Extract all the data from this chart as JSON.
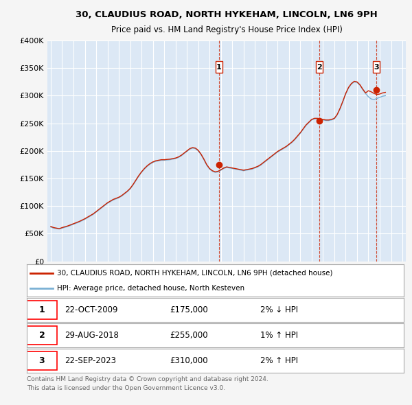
{
  "title": "30, CLAUDIUS ROAD, NORTH HYKEHAM, LINCOLN, LN6 9PH",
  "subtitle": "Price paid vs. HM Land Registry's House Price Index (HPI)",
  "background_color": "#f5f5f5",
  "plot_bg_color": "#dce8f5",
  "grid_color": "#ffffff",
  "hpi_line_color": "#7ab0d4",
  "price_line_color": "#cc2200",
  "ylim": [
    0,
    400000
  ],
  "yticks": [
    0,
    50000,
    100000,
    150000,
    200000,
    250000,
    300000,
    350000,
    400000
  ],
  "ytick_labels": [
    "£0",
    "£50K",
    "£100K",
    "£150K",
    "£200K",
    "£250K",
    "£300K",
    "£350K",
    "£400K"
  ],
  "xlim_start": 1994.7,
  "xlim_end": 2026.3,
  "xticks": [
    1995,
    1996,
    1997,
    1998,
    1999,
    2000,
    2001,
    2002,
    2003,
    2004,
    2005,
    2006,
    2007,
    2008,
    2009,
    2010,
    2011,
    2012,
    2013,
    2014,
    2015,
    2016,
    2017,
    2018,
    2019,
    2020,
    2021,
    2022,
    2023,
    2024,
    2025,
    2026
  ],
  "sales": [
    {
      "year": 2009.81,
      "price": 175000,
      "label": "1",
      "note": "22-OCT-2009",
      "amount": "£175,000",
      "hpi_pct": "2% ↓ HPI"
    },
    {
      "year": 2018.66,
      "price": 255000,
      "label": "2",
      "note": "29-AUG-2018",
      "amount": "£255,000",
      "hpi_pct": "1% ↑ HPI"
    },
    {
      "year": 2023.72,
      "price": 310000,
      "label": "3",
      "note": "22-SEP-2023",
      "amount": "£310,000",
      "hpi_pct": "2% ↑ HPI"
    }
  ],
  "legend_label_red": "30, CLAUDIUS ROAD, NORTH HYKEHAM, LINCOLN, LN6 9PH (detached house)",
  "legend_label_blue": "HPI: Average price, detached house, North Kesteven",
  "footer_line1": "Contains HM Land Registry data © Crown copyright and database right 2024.",
  "footer_line2": "This data is licensed under the Open Government Licence v3.0.",
  "hpi_years": [
    1995.0,
    1995.25,
    1995.5,
    1995.75,
    1996.0,
    1996.25,
    1996.5,
    1996.75,
    1997.0,
    1997.25,
    1997.5,
    1997.75,
    1998.0,
    1998.25,
    1998.5,
    1998.75,
    1999.0,
    1999.25,
    1999.5,
    1999.75,
    2000.0,
    2000.25,
    2000.5,
    2000.75,
    2001.0,
    2001.25,
    2001.5,
    2001.75,
    2002.0,
    2002.25,
    2002.5,
    2002.75,
    2003.0,
    2003.25,
    2003.5,
    2003.75,
    2004.0,
    2004.25,
    2004.5,
    2004.75,
    2005.0,
    2005.25,
    2005.5,
    2005.75,
    2006.0,
    2006.25,
    2006.5,
    2006.75,
    2007.0,
    2007.25,
    2007.5,
    2007.75,
    2008.0,
    2008.25,
    2008.5,
    2008.75,
    2009.0,
    2009.25,
    2009.5,
    2009.75,
    2010.0,
    2010.25,
    2010.5,
    2010.75,
    2011.0,
    2011.25,
    2011.5,
    2011.75,
    2012.0,
    2012.25,
    2012.5,
    2012.75,
    2013.0,
    2013.25,
    2013.5,
    2013.75,
    2014.0,
    2014.25,
    2014.5,
    2014.75,
    2015.0,
    2015.25,
    2015.5,
    2015.75,
    2016.0,
    2016.25,
    2016.5,
    2016.75,
    2017.0,
    2017.25,
    2017.5,
    2017.75,
    2018.0,
    2018.25,
    2018.5,
    2018.75,
    2019.0,
    2019.25,
    2019.5,
    2019.75,
    2020.0,
    2020.25,
    2020.5,
    2020.75,
    2021.0,
    2021.25,
    2021.5,
    2021.75,
    2022.0,
    2022.25,
    2022.5,
    2022.75,
    2023.0,
    2023.25,
    2023.5,
    2023.75,
    2024.0,
    2024.25,
    2024.5
  ],
  "hpi_values": [
    62000,
    60000,
    59000,
    58500,
    60000,
    61500,
    63000,
    65000,
    67000,
    69000,
    71000,
    73500,
    76000,
    79000,
    82000,
    85000,
    89000,
    93000,
    97000,
    101000,
    105000,
    108000,
    111000,
    113000,
    115000,
    118000,
    122000,
    126000,
    131000,
    138000,
    146000,
    154000,
    161000,
    167000,
    172000,
    176000,
    179000,
    181000,
    182000,
    183000,
    183000,
    183500,
    184000,
    185000,
    186000,
    188000,
    191000,
    195000,
    199000,
    203000,
    205000,
    204000,
    200000,
    193000,
    184000,
    174000,
    167000,
    163000,
    161000,
    162000,
    165000,
    168000,
    170000,
    169000,
    168000,
    167000,
    166000,
    165000,
    164000,
    165000,
    166000,
    167000,
    169000,
    171000,
    174000,
    178000,
    182000,
    186000,
    190000,
    194000,
    198000,
    201000,
    204000,
    207000,
    211000,
    215000,
    220000,
    226000,
    232000,
    239000,
    246000,
    251000,
    256000,
    258000,
    258000,
    257000,
    256000,
    255000,
    255000,
    256000,
    258000,
    265000,
    276000,
    289000,
    303000,
    314000,
    321000,
    325000,
    324000,
    319000,
    311000,
    304000,
    298000,
    294000,
    293000,
    295000,
    297000,
    299000,
    300000
  ],
  "price_years": [
    1995.0,
    1995.25,
    1995.5,
    1995.75,
    1996.0,
    1996.25,
    1996.5,
    1996.75,
    1997.0,
    1997.25,
    1997.5,
    1997.75,
    1998.0,
    1998.25,
    1998.5,
    1998.75,
    1999.0,
    1999.25,
    1999.5,
    1999.75,
    2000.0,
    2000.25,
    2000.5,
    2000.75,
    2001.0,
    2001.25,
    2001.5,
    2001.75,
    2002.0,
    2002.25,
    2002.5,
    2002.75,
    2003.0,
    2003.25,
    2003.5,
    2003.75,
    2004.0,
    2004.25,
    2004.5,
    2004.75,
    2005.0,
    2005.25,
    2005.5,
    2005.75,
    2006.0,
    2006.25,
    2006.5,
    2006.75,
    2007.0,
    2007.25,
    2007.5,
    2007.75,
    2008.0,
    2008.25,
    2008.5,
    2008.75,
    2009.0,
    2009.25,
    2009.5,
    2009.75,
    2010.0,
    2010.25,
    2010.5,
    2010.75,
    2011.0,
    2011.25,
    2011.5,
    2011.75,
    2012.0,
    2012.25,
    2012.5,
    2012.75,
    2013.0,
    2013.25,
    2013.5,
    2013.75,
    2014.0,
    2014.25,
    2014.5,
    2014.75,
    2015.0,
    2015.25,
    2015.5,
    2015.75,
    2016.0,
    2016.25,
    2016.5,
    2016.75,
    2017.0,
    2017.25,
    2017.5,
    2017.75,
    2018.0,
    2018.25,
    2018.5,
    2018.75,
    2019.0,
    2019.25,
    2019.5,
    2019.75,
    2020.0,
    2020.25,
    2020.5,
    2020.75,
    2021.0,
    2021.25,
    2021.5,
    2021.75,
    2022.0,
    2022.25,
    2022.5,
    2022.75,
    2023.0,
    2023.25,
    2023.5,
    2023.75,
    2024.0,
    2024.25,
    2024.5
  ],
  "price_values": [
    63000,
    61000,
    60000,
    59000,
    61000,
    62500,
    64000,
    66000,
    68000,
    70000,
    72000,
    74500,
    77000,
    80000,
    83000,
    86000,
    90000,
    94000,
    98000,
    102000,
    106000,
    109000,
    112000,
    114000,
    116000,
    119000,
    123000,
    127000,
    132000,
    139000,
    147000,
    155000,
    162000,
    168000,
    173000,
    177000,
    180000,
    182000,
    183000,
    184000,
    184000,
    184500,
    185000,
    186000,
    187000,
    189000,
    192000,
    196000,
    200000,
    204000,
    206000,
    205000,
    201000,
    194000,
    185000,
    175000,
    168000,
    164000,
    162000,
    163000,
    166000,
    169000,
    171000,
    170000,
    169000,
    168000,
    167000,
    166000,
    165000,
    166000,
    167000,
    168000,
    170000,
    172000,
    175000,
    179000,
    183000,
    187000,
    191000,
    195000,
    199000,
    202000,
    205000,
    208000,
    212000,
    216000,
    221000,
    227000,
    233000,
    240000,
    247000,
    252000,
    257000,
    259000,
    259000,
    258000,
    257000,
    256000,
    256000,
    257000,
    259000,
    266000,
    277000,
    290000,
    304000,
    315000,
    322000,
    326000,
    325000,
    320000,
    312000,
    305000,
    309000,
    307000,
    304000,
    302000,
    303000,
    305000,
    306000
  ]
}
